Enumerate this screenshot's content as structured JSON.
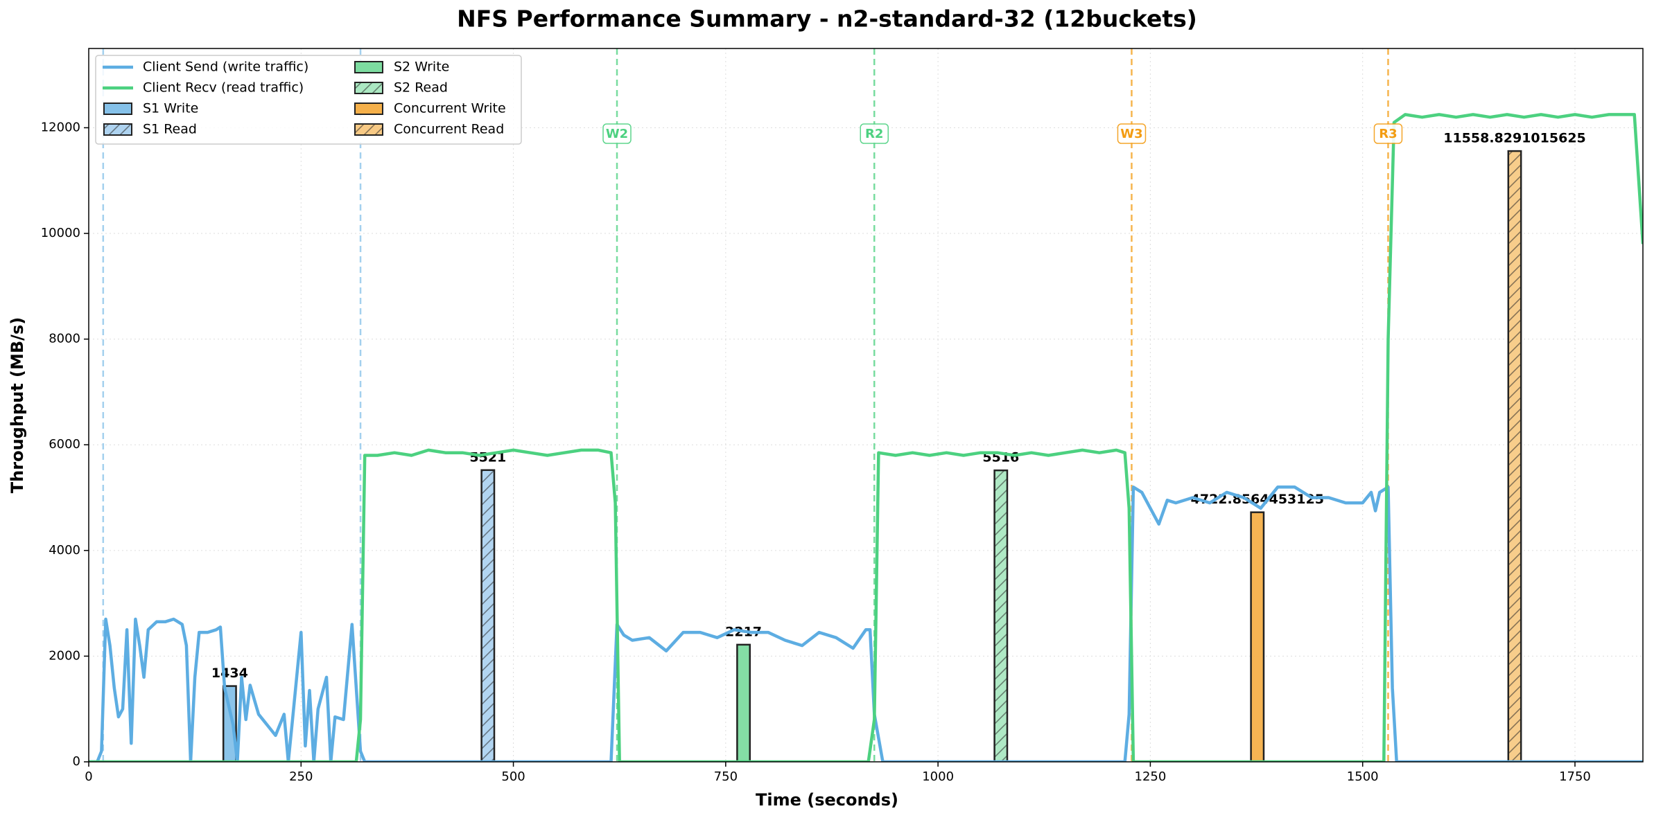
{
  "chart_data": {
    "type": "line",
    "title": "NFS Performance Summary - n2-standard-32 (12buckets)",
    "x_label": "Time (seconds)",
    "y_label": "Throughput (MB/s)",
    "xlim": [
      0,
      1830
    ],
    "ylim": [
      0,
      13500
    ],
    "xticks": [
      0,
      250,
      500,
      750,
      1000,
      1250,
      1500,
      1750
    ],
    "yticks": [
      0,
      2000,
      4000,
      6000,
      8000,
      10000,
      12000
    ],
    "grid": true,
    "legend": "upper left",
    "series": [
      {
        "name": "Client Send (write traffic)",
        "color": "#5dade2",
        "x": [
          0,
          10,
          15,
          20,
          25,
          30,
          35,
          40,
          45,
          50,
          55,
          60,
          65,
          70,
          80,
          90,
          100,
          110,
          115,
          120,
          125,
          130,
          140,
          150,
          155,
          160,
          170,
          175,
          180,
          185,
          190,
          200,
          210,
          220,
          230,
          235,
          240,
          250,
          255,
          260,
          265,
          270,
          280,
          285,
          290,
          300,
          310,
          320,
          325,
          615,
          622,
          630,
          640,
          660,
          680,
          700,
          720,
          740,
          760,
          780,
          800,
          820,
          840,
          860,
          880,
          900,
          915,
          920,
          925,
          935,
          1220,
          1225,
          1230,
          1240,
          1250,
          1260,
          1270,
          1280,
          1300,
          1320,
          1340,
          1360,
          1380,
          1400,
          1420,
          1440,
          1460,
          1480,
          1500,
          1510,
          1515,
          1520,
          1530,
          1535,
          1540,
          1830
        ],
        "values": [
          0,
          0,
          200,
          2700,
          2200,
          1400,
          850,
          1000,
          2500,
          350,
          2700,
          2200,
          1600,
          2500,
          2650,
          2650,
          2700,
          2600,
          2200,
          0,
          1600,
          2450,
          2450,
          2500,
          2550,
          1400,
          700,
          0,
          1600,
          800,
          1450,
          900,
          700,
          500,
          900,
          0,
          800,
          2450,
          300,
          1350,
          0,
          1000,
          1600,
          0,
          850,
          800,
          2600,
          200,
          0,
          0,
          2600,
          2400,
          2300,
          2350,
          2100,
          2450,
          2450,
          2350,
          2500,
          2450,
          2450,
          2300,
          2200,
          2450,
          2350,
          2150,
          2500,
          2500,
          900,
          0,
          0,
          900,
          5200,
          5100,
          4800,
          4500,
          4950,
          4900,
          5000,
          4900,
          5100,
          5000,
          4800,
          5200,
          5200,
          5000,
          5000,
          4900,
          4900,
          5100,
          4750,
          5100,
          5200,
          1400,
          0,
          0
        ]
      },
      {
        "name": "Client Recv (read traffic)",
        "color": "#4cd180",
        "x": [
          0,
          315,
          320,
          325,
          340,
          360,
          380,
          400,
          420,
          440,
          460,
          480,
          500,
          520,
          540,
          560,
          580,
          600,
          615,
          620,
          625,
          918,
          925,
          930,
          950,
          970,
          990,
          1010,
          1030,
          1050,
          1070,
          1090,
          1110,
          1130,
          1150,
          1170,
          1190,
          1210,
          1220,
          1225,
          1230,
          1525,
          1530,
          1537,
          1550,
          1570,
          1590,
          1610,
          1630,
          1650,
          1670,
          1690,
          1710,
          1730,
          1750,
          1770,
          1790,
          1810,
          1820,
          1830
        ],
        "values": [
          0,
          0,
          800,
          5800,
          5800,
          5850,
          5800,
          5900,
          5850,
          5850,
          5800,
          5850,
          5900,
          5850,
          5800,
          5850,
          5900,
          5900,
          5850,
          4900,
          0,
          0,
          800,
          5850,
          5800,
          5850,
          5800,
          5850,
          5800,
          5850,
          5850,
          5800,
          5850,
          5800,
          5850,
          5900,
          5850,
          5900,
          5850,
          4800,
          0,
          0,
          8000,
          12100,
          12250,
          12200,
          12250,
          12200,
          12250,
          12200,
          12250,
          12200,
          12250,
          12200,
          12250,
          12200,
          12250,
          12250,
          12250,
          9800
        ]
      }
    ],
    "bars": [
      {
        "name": "S1 Write",
        "x": 166,
        "value": 1434,
        "color": "#85c1e9",
        "hatch": false
      },
      {
        "name": "S1 Read",
        "x": 470,
        "value": 5521,
        "color": "#aed3f0",
        "hatch": true
      },
      {
        "name": "S2 Write",
        "x": 771,
        "value": 2217,
        "color": "#7ddca0",
        "hatch": false
      },
      {
        "name": "S2 Read",
        "x": 1074,
        "value": 5516,
        "color": "#abe8c2",
        "hatch": true
      },
      {
        "name": "Concurrent Write",
        "x": 1376,
        "value": 4722.8564453125,
        "color": "#f5b04a",
        "hatch": false
      },
      {
        "name": "Concurrent Read",
        "x": 1679,
        "value": 11558.8291015625,
        "color": "#f8ca85",
        "hatch": true
      }
    ],
    "phase_markers": [
      {
        "x": 17,
        "color": "#85c1e9"
      },
      {
        "x": 320,
        "color": "#85c1e9"
      },
      {
        "x": 622,
        "label": "W2",
        "color": "#4cd180"
      },
      {
        "x": 925,
        "label": "R2",
        "color": "#4cd180"
      },
      {
        "x": 1228,
        "label": "W3",
        "color": "#f39c12"
      },
      {
        "x": 1530,
        "label": "R3",
        "color": "#f39c12"
      }
    ]
  }
}
